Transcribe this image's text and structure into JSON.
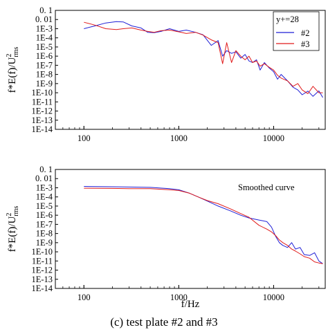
{
  "figure": {
    "caption": "(c) test plate #2 and #3"
  },
  "colors": {
    "#2": "#1f1fd6",
    "#3": "#e01a1a"
  },
  "chart_data": [
    {
      "type": "line",
      "xscale": "log",
      "yscale": "log",
      "xlim": [
        50,
        35000
      ],
      "ylim": [
        1e-14,
        0.1
      ],
      "grid": false,
      "legend_position": "top-right",
      "x_ticks": [
        100,
        1000,
        10000
      ],
      "x_tick_labels": [
        "100",
        "1000",
        "10000"
      ],
      "y_tick_labels": [
        "0. 1",
        "0. 01",
        "1E-3",
        "1E-4",
        "1E-5",
        "1E-6",
        "1E-7",
        "1E-8",
        "1E-9",
        "1E-10",
        "1E-11",
        "1E-12",
        "1E-13",
        "1E-14"
      ],
      "xlabel": "",
      "ylabel": "f*E(f)/U",
      "ylabel_sup": "2",
      "ylabel_sub": "rms",
      "legend_title": "y+=28",
      "annotation": "",
      "series": [
        {
          "name": "#2",
          "color": "#1f1fd6",
          "x": [
            100,
            130,
            170,
            220,
            260,
            320,
            400,
            470,
            550,
            650,
            800,
            1000,
            1200,
            1500,
            1800,
            2200,
            2600,
            2900,
            3200,
            3600,
            4000,
            4500,
            5000,
            5500,
            6000,
            6600,
            7200,
            8000,
            9000,
            10000,
            11000,
            12000,
            14000,
            16000,
            18000,
            20000,
            23000,
            26000,
            30000,
            33000
          ],
          "y": [
            0.001,
            0.002,
            0.0042,
            0.006,
            0.0055,
            0.002,
            0.0012,
            0.0004,
            0.00036,
            0.0005,
            0.001,
            0.0005,
            0.0007,
            0.0004,
            0.00022,
            1.5e-05,
            5e-05,
            1e-06,
            4e-06,
            2e-06,
            3e-06,
            6e-07,
            1.5e-06,
            3e-07,
            2e-07,
            4e-07,
            3e-08,
            2e-07,
            5e-08,
            2e-08,
            3e-09,
            1e-08,
            2e-09,
            4e-10,
            2e-10,
            6e-11,
            1.5e-10,
            4e-11,
            1.6e-10,
            3e-11
          ]
        },
        {
          "name": "#3",
          "color": "#e01a1a",
          "x": [
            100,
            130,
            170,
            220,
            260,
            320,
            400,
            470,
            550,
            650,
            800,
            1000,
            1200,
            1500,
            1800,
            2200,
            2600,
            2900,
            3200,
            3600,
            4000,
            4500,
            5000,
            5500,
            6000,
            6600,
            7200,
            8000,
            9000,
            10000,
            11000,
            12000,
            14000,
            16000,
            18000,
            20000,
            23000,
            26000,
            30000,
            33000
          ],
          "y": [
            0.005,
            0.0025,
            0.001,
            0.0008,
            0.001,
            0.0012,
            0.0007,
            0.0005,
            0.0004,
            0.0006,
            0.0007,
            0.00045,
            0.0003,
            0.0004,
            0.0002,
            6e-05,
            3e-05,
            1.5e-07,
            3e-05,
            2e-07,
            4e-06,
            1e-06,
            4e-07,
            1e-06,
            2e-07,
            3e-07,
            8e-08,
            1.5e-07,
            6e-08,
            3e-08,
            8e-09,
            4e-09,
            2e-09,
            5e-10,
            1e-09,
            2e-10,
            8e-11,
            5e-10,
            1e-10,
            1e-10
          ]
        }
      ]
    },
    {
      "type": "line",
      "xscale": "log",
      "yscale": "log",
      "xlim": [
        50,
        35000
      ],
      "ylim": [
        1e-14,
        0.1
      ],
      "grid": false,
      "legend_position": "none",
      "x_ticks": [
        100,
        1000,
        10000
      ],
      "x_tick_labels": [
        "100",
        "1000",
        "10000"
      ],
      "y_tick_labels": [
        "0. 1",
        "0. 01",
        "1E-3",
        "1E-4",
        "1E-5",
        "1E-6",
        "1E-7",
        "1E-8",
        "1E-9",
        "1E-10",
        "1E-11",
        "1E-12",
        "1E-13",
        "1E-14"
      ],
      "xlabel": "f/Hz",
      "ylabel": "f*E(f)/U",
      "ylabel_sup": "2",
      "ylabel_sub": "rms",
      "legend_title": "",
      "annotation": "Smoothed curve",
      "series": [
        {
          "name": "#2",
          "color": "#1f1fd6",
          "x": [
            100,
            200,
            300,
            500,
            800,
            1000,
            1300,
            1600,
            2000,
            2600,
            3500,
            4500,
            5500,
            7000,
            8500,
            9500,
            10500,
            11500,
            12500,
            14000,
            15500,
            17000,
            19000,
            21000,
            24000,
            27000,
            30000,
            33000
          ],
          "y": [
            0.0014,
            0.0013,
            0.0012,
            0.0011,
            0.0008,
            0.0006,
            0.00025,
            0.0001,
            3.5e-05,
            1e-05,
            3e-06,
            1e-06,
            5e-07,
            3e-07,
            2e-07,
            5e-08,
            5e-09,
            1e-09,
            5e-10,
            3e-10,
            1e-09,
            2e-10,
            3e-10,
            5e-11,
            4e-11,
            8e-11,
            1e-11,
            5e-12
          ]
        },
        {
          "name": "#3",
          "color": "#e01a1a",
          "x": [
            100,
            200,
            300,
            500,
            800,
            1000,
            1300,
            1600,
            2000,
            2600,
            3500,
            4500,
            5500,
            7000,
            8500,
            9500,
            10500,
            11500,
            12500,
            14000,
            15500,
            17000,
            19000,
            21000,
            24000,
            27000,
            30000,
            33000
          ],
          "y": [
            0.0009,
            0.00085,
            0.0008,
            0.0008,
            0.0006,
            0.0005,
            0.00025,
            0.0001,
            4e-05,
            1.8e-05,
            5e-06,
            1.5e-06,
            6e-07,
            8e-08,
            3e-08,
            1.5e-08,
            6e-09,
            2e-09,
            1e-09,
            5e-10,
            2e-10,
            1.2e-10,
            6e-11,
            3e-11,
            2e-11,
            8e-12,
            6e-12,
            5e-12
          ]
        }
      ]
    }
  ]
}
